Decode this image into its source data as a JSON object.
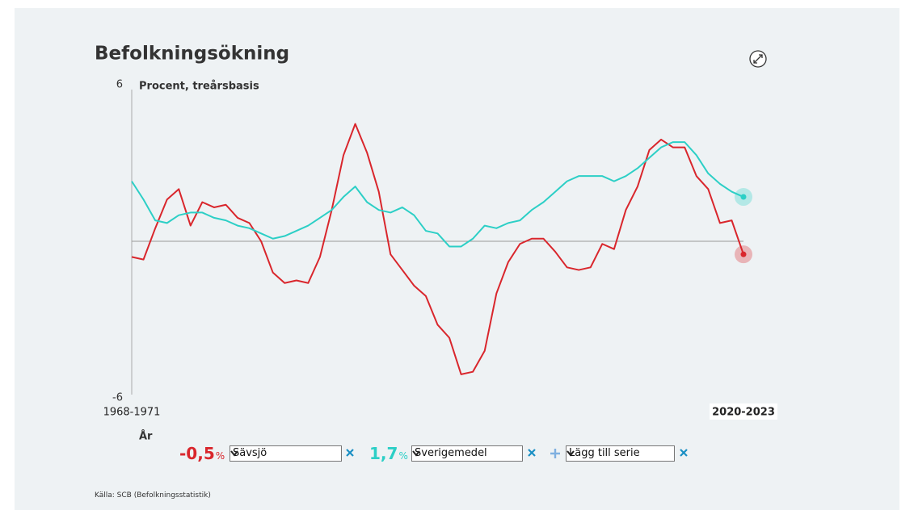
{
  "chart_data": {
    "type": "line",
    "title": "Befolkningsökning",
    "y_label": "Procent, treårsbasis",
    "x_label": "År",
    "unit": "%",
    "ylim": [
      -6,
      6
    ],
    "yticks": [
      -6,
      6
    ],
    "categories": [
      "1968-1971",
      null,
      null,
      null,
      null,
      null,
      null,
      null,
      null,
      null,
      null,
      null,
      null,
      null,
      null,
      null,
      null,
      null,
      null,
      null,
      null,
      null,
      null,
      null,
      null,
      null,
      null,
      null,
      null,
      null,
      null,
      null,
      null,
      null,
      null,
      null,
      null,
      null,
      null,
      null,
      null,
      null,
      null,
      null,
      null,
      null,
      null,
      null,
      null,
      null,
      null,
      null,
      "2020-2023"
    ],
    "series": [
      {
        "name": "Sävsjö",
        "color": "#d9262c",
        "values": [
          -0.6,
          -0.7,
          0.5,
          1.6,
          2.0,
          0.6,
          1.5,
          1.3,
          1.4,
          0.9,
          0.7,
          0.0,
          -1.2,
          -1.6,
          -1.5,
          -1.6,
          -0.6,
          1.2,
          3.3,
          4.5,
          3.4,
          1.9,
          -0.5,
          -1.1,
          -1.7,
          -2.1,
          -3.2,
          -3.7,
          -5.1,
          -5.0,
          -4.2,
          -2.0,
          -0.8,
          -0.1,
          0.1,
          0.1,
          -0.4,
          -1.0,
          -1.1,
          -1.0,
          -0.1,
          -0.3,
          1.2,
          2.1,
          3.5,
          3.9,
          3.6,
          3.6,
          2.5,
          2.0,
          0.7,
          0.8,
          -0.5
        ],
        "value_labels": [
          null,
          null,
          null,
          null,
          null,
          null,
          null,
          null,
          null,
          null,
          null,
          null,
          null,
          null,
          null,
          null,
          null,
          null,
          null,
          null,
          null,
          null,
          null,
          null,
          null,
          null,
          null,
          null,
          null,
          null,
          null,
          null,
          null,
          null,
          null,
          null,
          null,
          null,
          null,
          null,
          null,
          null,
          null,
          null,
          null,
          null,
          null,
          null,
          null,
          null,
          null,
          null,
          "-0,5"
        ]
      },
      {
        "name": "Sverigemedel",
        "color": "#2ccfc6",
        "values": [
          2.3,
          1.6,
          0.8,
          0.7,
          1.0,
          1.1,
          1.1,
          0.9,
          0.8,
          0.6,
          0.5,
          0.3,
          0.1,
          0.2,
          0.4,
          0.6,
          0.9,
          1.2,
          1.7,
          2.1,
          1.5,
          1.2,
          1.1,
          1.3,
          1.0,
          0.4,
          0.3,
          -0.2,
          -0.2,
          0.1,
          0.6,
          0.5,
          0.7,
          0.8,
          1.2,
          1.5,
          1.9,
          2.3,
          2.5,
          2.5,
          2.5,
          2.3,
          2.5,
          2.8,
          3.2,
          3.6,
          3.8,
          3.8,
          3.3,
          2.6,
          2.2,
          1.9,
          1.7
        ],
        "value_labels": [
          null,
          null,
          null,
          null,
          null,
          null,
          null,
          null,
          null,
          null,
          null,
          null,
          null,
          null,
          null,
          null,
          null,
          null,
          null,
          null,
          null,
          null,
          null,
          null,
          null,
          null,
          null,
          null,
          null,
          null,
          null,
          null,
          null,
          null,
          null,
          null,
          null,
          null,
          null,
          null,
          null,
          null,
          null,
          null,
          null,
          null,
          null,
          null,
          null,
          null,
          null,
          null,
          "1,7"
        ]
      }
    ]
  },
  "controls": {
    "add_series_label": "Lägg till serie"
  },
  "source": "Källa: SCB (Befolkningsstatistik)"
}
